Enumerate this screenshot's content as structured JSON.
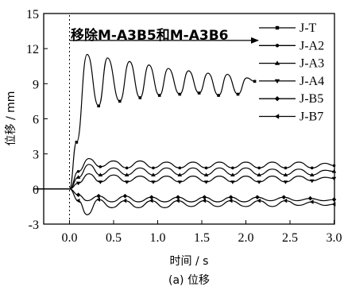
{
  "chart_data": {
    "type": "line",
    "xlabel": "时间 / s",
    "ylabel": "位移 / mm",
    "xlim": [
      -0.4,
      3.0
    ],
    "ylim": [
      -3,
      15
    ],
    "xticks": [
      "0.0",
      "0.5",
      "1.0",
      "1.5",
      "2.0",
      "2.5",
      "3.0"
    ],
    "xtick_values": [
      0.0,
      0.5,
      1.0,
      1.5,
      2.0,
      2.5,
      3.0
    ],
    "yticks": [
      "-3",
      "0",
      "3",
      "6",
      "9",
      "12",
      "15"
    ],
    "ytick_values": [
      -3,
      0,
      3,
      6,
      9,
      12,
      15
    ],
    "annotation": "移除M-A3B5和M-A3B6",
    "event_time": 0.0,
    "caption": "(a) 位移",
    "legend_position": "top-right",
    "grid": false,
    "line_color": "#000000",
    "series": [
      {
        "name": "J-T",
        "marker": "square",
        "x": [
          -0.4,
          0.0,
          0.08,
          0.2,
          0.33,
          0.43,
          0.57,
          0.68,
          0.8,
          0.9,
          1.02,
          1.12,
          1.25,
          1.35,
          1.47,
          1.57,
          1.69,
          1.79,
          1.91,
          2.01,
          2.1
        ],
        "y": [
          0.0,
          0.0,
          4.0,
          11.5,
          7.1,
          11.2,
          7.5,
          10.9,
          7.8,
          10.6,
          8.0,
          10.3,
          8.1,
          10.1,
          8.2,
          9.9,
          8.0,
          9.8,
          8.1,
          9.5,
          9.2
        ]
      },
      {
        "name": "J-A2",
        "marker": "circle",
        "x": [
          -0.4,
          0.0,
          0.1,
          0.22,
          0.35,
          0.5,
          0.65,
          0.8,
          0.95,
          1.1,
          1.25,
          1.4,
          1.55,
          1.7,
          1.85,
          2.0,
          2.15,
          2.3,
          2.45,
          2.6,
          2.75,
          2.9,
          3.0
        ],
        "y": [
          0.0,
          0.0,
          1.5,
          2.6,
          1.9,
          2.4,
          1.8,
          2.4,
          1.8,
          2.3,
          1.8,
          2.3,
          1.8,
          2.3,
          1.8,
          2.3,
          1.8,
          2.3,
          1.8,
          2.3,
          1.8,
          2.2,
          2.0
        ]
      },
      {
        "name": "J-A3",
        "marker": "triangle-up",
        "x": [
          -0.4,
          0.0,
          0.1,
          0.22,
          0.35,
          0.5,
          0.65,
          0.8,
          0.95,
          1.1,
          1.25,
          1.4,
          1.55,
          1.7,
          1.85,
          2.0,
          2.15,
          2.3,
          2.45,
          2.6,
          2.75,
          2.9,
          3.0
        ],
        "y": [
          0.0,
          0.0,
          1.0,
          2.1,
          1.2,
          1.8,
          1.2,
          1.8,
          1.2,
          1.8,
          1.2,
          1.8,
          1.2,
          1.8,
          1.2,
          1.8,
          1.2,
          1.7,
          1.2,
          1.7,
          1.2,
          1.6,
          1.5
        ]
      },
      {
        "name": "J-A4",
        "marker": "triangle-down",
        "x": [
          -0.4,
          0.0,
          0.1,
          0.22,
          0.35,
          0.5,
          0.65,
          0.8,
          0.95,
          1.1,
          1.25,
          1.4,
          1.55,
          1.7,
          1.85,
          2.0,
          2.15,
          2.3,
          2.45,
          2.6,
          2.75,
          2.9,
          3.0
        ],
        "y": [
          0.0,
          0.0,
          0.5,
          1.3,
          0.6,
          1.2,
          0.6,
          1.1,
          0.6,
          1.1,
          0.6,
          1.1,
          0.6,
          1.1,
          0.6,
          1.1,
          0.6,
          1.1,
          0.6,
          1.1,
          0.7,
          1.0,
          0.9
        ]
      },
      {
        "name": "J-B5",
        "marker": "diamond",
        "x": [
          -0.4,
          0.0,
          0.1,
          0.2,
          0.33,
          0.48,
          0.63,
          0.78,
          0.93,
          1.08,
          1.23,
          1.38,
          1.53,
          1.68,
          1.83,
          1.98,
          2.13,
          2.28,
          2.43,
          2.58,
          2.73,
          2.88,
          3.0
        ],
        "y": [
          0.0,
          0.0,
          -0.5,
          -1.0,
          -0.6,
          -1.1,
          -0.6,
          -1.1,
          -0.7,
          -1.1,
          -0.7,
          -1.1,
          -0.7,
          -1.1,
          -0.7,
          -1.1,
          -0.7,
          -1.0,
          -0.7,
          -1.0,
          -0.8,
          -1.0,
          -0.9
        ]
      },
      {
        "name": "J-B7",
        "marker": "left-triangle",
        "x": [
          -0.4,
          0.0,
          0.1,
          0.2,
          0.33,
          0.48,
          0.63,
          0.78,
          0.93,
          1.08,
          1.23,
          1.38,
          1.53,
          1.68,
          1.83,
          2.0,
          2.15,
          2.3,
          2.45,
          2.6,
          2.75,
          2.9,
          3.0
        ],
        "y": [
          0.0,
          0.0,
          -1.0,
          -2.2,
          -0.9,
          -1.6,
          -1.0,
          -1.6,
          -1.0,
          -1.6,
          -1.0,
          -1.5,
          -1.0,
          -1.5,
          -1.0,
          -1.5,
          -1.0,
          -1.5,
          -1.0,
          -1.4,
          -1.1,
          -1.4,
          -1.3
        ]
      }
    ]
  }
}
